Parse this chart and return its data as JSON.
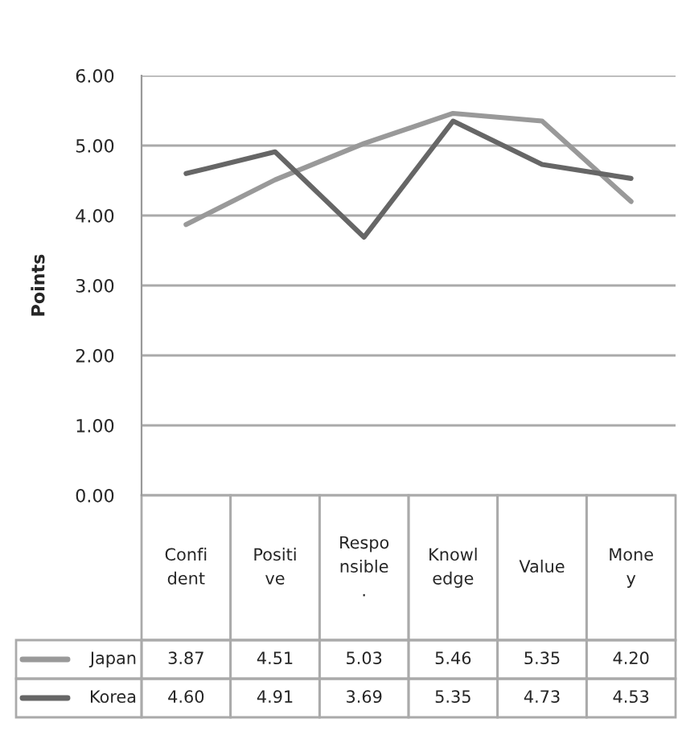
{
  "chart_data": {
    "type": "line",
    "categories": [
      "Confi\ndent",
      "Positi\nve",
      "Respo\nnsible\n.",
      "Knowl\nedge",
      "Value",
      "Mone\ny"
    ],
    "series": [
      {
        "name": "Japan",
        "color": "#999999",
        "values": [
          3.87,
          4.51,
          5.03,
          5.46,
          5.35,
          4.2
        ],
        "value_labels": [
          "3.87",
          "4.51",
          "5.03",
          "5.46",
          "5.35",
          "4.20"
        ]
      },
      {
        "name": "Korea",
        "color": "#666666",
        "values": [
          4.6,
          4.91,
          3.69,
          5.35,
          4.73,
          4.53
        ],
        "value_labels": [
          "4.60",
          "4.91",
          "3.69",
          "5.35",
          "4.73",
          "4.53"
        ]
      }
    ],
    "ylabel": "Points",
    "ylim": [
      0,
      6
    ],
    "yticks": [
      {
        "value": 0,
        "label": "0.00"
      },
      {
        "value": 1,
        "label": "1.00"
      },
      {
        "value": 2,
        "label": "2.00"
      },
      {
        "value": 3,
        "label": "3.00"
      },
      {
        "value": 4,
        "label": "4.00"
      },
      {
        "value": 5,
        "label": "5.00"
      },
      {
        "value": 6,
        "label": "6.00"
      }
    ],
    "grid": "y",
    "legend": "bottom",
    "marker": "none"
  }
}
